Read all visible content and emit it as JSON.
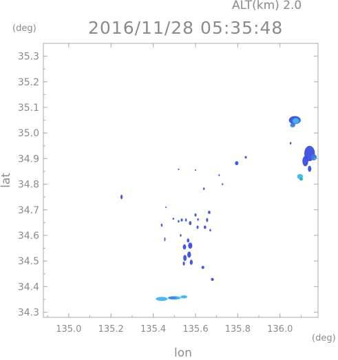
{
  "header": {
    "alt_label": "ALT(km) 2.0",
    "timestamp": "2016/11/28 05:35:48"
  },
  "colors": {
    "axis": "#aaaaaa",
    "text": "#8a8a8a",
    "echo_blue": "#3b4fe0",
    "echo_mid": "#3d7be0",
    "echo_cyan": "#3fb6ee",
    "echo_teal": "#2fa7c8"
  },
  "chart_data": {
    "type": "scatter",
    "title": "2016/11/28 05:35:48",
    "subtitle": "ALT(km) 2.0",
    "xlabel": "lon",
    "ylabel": "lat",
    "x_unit": "(deg)",
    "y_unit": "(deg)",
    "xlim": [
      134.88,
      136.18
    ],
    "ylim": [
      34.28,
      35.35
    ],
    "x_ticks": [
      135.0,
      135.2,
      135.4,
      135.6,
      135.8,
      136.0
    ],
    "x_tick_labels": [
      "135.0",
      "135.2",
      "135.4",
      "135.6",
      "135.8",
      "136.0"
    ],
    "y_ticks": [
      34.3,
      34.4,
      34.5,
      34.6,
      34.7,
      34.8,
      34.9,
      35.0,
      35.1,
      35.2,
      35.3
    ],
    "y_tick_labels": [
      "34.3",
      "34.4",
      "34.5",
      "34.6",
      "34.7",
      "34.8",
      "34.9",
      "35.0",
      "35.1",
      "35.2",
      "35.3"
    ],
    "grid": false,
    "echoes": [
      {
        "lon": 136.07,
        "lat": 35.05,
        "rx": 0.028,
        "ry": 0.016,
        "color": "#3b4fe0"
      },
      {
        "lon": 136.075,
        "lat": 35.047,
        "rx": 0.016,
        "ry": 0.011,
        "color": "#3fb6ee"
      },
      {
        "lon": 136.06,
        "lat": 35.03,
        "rx": 0.012,
        "ry": 0.008,
        "color": "#3d7be0"
      },
      {
        "lon": 136.14,
        "lat": 34.92,
        "rx": 0.025,
        "ry": 0.03,
        "color": "#3b4fe0"
      },
      {
        "lon": 136.16,
        "lat": 34.905,
        "rx": 0.014,
        "ry": 0.012,
        "color": "#3d7be0"
      },
      {
        "lon": 136.12,
        "lat": 34.89,
        "rx": 0.014,
        "ry": 0.02,
        "color": "#3b4fe0"
      },
      {
        "lon": 136.14,
        "lat": 34.86,
        "rx": 0.008,
        "ry": 0.012,
        "color": "#3b4fe0"
      },
      {
        "lon": 136.095,
        "lat": 34.83,
        "rx": 0.014,
        "ry": 0.01,
        "color": "#3fb6ee"
      },
      {
        "lon": 136.1,
        "lat": 34.82,
        "rx": 0.008,
        "ry": 0.006,
        "color": "#2fa7c8"
      },
      {
        "lon": 136.05,
        "lat": 34.96,
        "rx": 0.004,
        "ry": 0.005,
        "color": "#3b4fe0"
      },
      {
        "lon": 135.795,
        "lat": 34.882,
        "rx": 0.008,
        "ry": 0.008,
        "color": "#3b4fe0"
      },
      {
        "lon": 135.838,
        "lat": 34.905,
        "rx": 0.005,
        "ry": 0.005,
        "color": "#3b4fe0"
      },
      {
        "lon": 135.712,
        "lat": 34.835,
        "rx": 0.003,
        "ry": 0.004,
        "color": "#3b4fe0"
      },
      {
        "lon": 135.728,
        "lat": 34.8,
        "rx": 0.003,
        "ry": 0.004,
        "color": "#3b4fe0"
      },
      {
        "lon": 135.64,
        "lat": 34.782,
        "rx": 0.004,
        "ry": 0.005,
        "color": "#3b4fe0"
      },
      {
        "lon": 135.6,
        "lat": 34.855,
        "rx": 0.003,
        "ry": 0.003,
        "color": "#3b4fe0"
      },
      {
        "lon": 135.52,
        "lat": 34.858,
        "rx": 0.002,
        "ry": 0.003,
        "color": "#3b4fe0"
      },
      {
        "lon": 135.25,
        "lat": 34.75,
        "rx": 0.005,
        "ry": 0.009,
        "color": "#3b4fe0"
      },
      {
        "lon": 135.46,
        "lat": 34.71,
        "rx": 0.003,
        "ry": 0.003,
        "color": "#3b4fe0"
      },
      {
        "lon": 135.6,
        "lat": 34.68,
        "rx": 0.005,
        "ry": 0.006,
        "color": "#3b4fe0"
      },
      {
        "lon": 135.612,
        "lat": 34.662,
        "rx": 0.004,
        "ry": 0.005,
        "color": "#3b4fe0"
      },
      {
        "lon": 135.665,
        "lat": 34.69,
        "rx": 0.006,
        "ry": 0.006,
        "color": "#3b4fe0"
      },
      {
        "lon": 135.655,
        "lat": 34.66,
        "rx": 0.005,
        "ry": 0.008,
        "color": "#3b4fe0"
      },
      {
        "lon": 135.645,
        "lat": 34.632,
        "rx": 0.006,
        "ry": 0.007,
        "color": "#3b4fe0"
      },
      {
        "lon": 135.67,
        "lat": 34.62,
        "rx": 0.004,
        "ry": 0.005,
        "color": "#3b4fe0"
      },
      {
        "lon": 135.61,
        "lat": 34.632,
        "rx": 0.005,
        "ry": 0.007,
        "color": "#3b4fe0"
      },
      {
        "lon": 135.575,
        "lat": 34.648,
        "rx": 0.006,
        "ry": 0.008,
        "color": "#3b4fe0"
      },
      {
        "lon": 135.555,
        "lat": 34.66,
        "rx": 0.004,
        "ry": 0.006,
        "color": "#3b4fe0"
      },
      {
        "lon": 135.52,
        "lat": 34.655,
        "rx": 0.004,
        "ry": 0.005,
        "color": "#3b4fe0"
      },
      {
        "lon": 135.495,
        "lat": 34.665,
        "rx": 0.004,
        "ry": 0.004,
        "color": "#3b4fe0"
      },
      {
        "lon": 135.535,
        "lat": 34.66,
        "rx": 0.005,
        "ry": 0.006,
        "color": "#3b4fe0"
      },
      {
        "lon": 135.44,
        "lat": 34.64,
        "rx": 0.004,
        "ry": 0.006,
        "color": "#3b4fe0"
      },
      {
        "lon": 135.455,
        "lat": 34.585,
        "rx": 0.003,
        "ry": 0.008,
        "color": "#3b4fe0"
      },
      {
        "lon": 135.565,
        "lat": 34.58,
        "rx": 0.006,
        "ry": 0.008,
        "color": "#3b4fe0"
      },
      {
        "lon": 135.53,
        "lat": 34.6,
        "rx": 0.004,
        "ry": 0.005,
        "color": "#3b4fe0"
      },
      {
        "lon": 135.575,
        "lat": 34.56,
        "rx": 0.01,
        "ry": 0.012,
        "color": "#3b4fe0"
      },
      {
        "lon": 135.548,
        "lat": 34.555,
        "rx": 0.008,
        "ry": 0.01,
        "color": "#3b4fe0"
      },
      {
        "lon": 135.57,
        "lat": 34.525,
        "rx": 0.009,
        "ry": 0.012,
        "color": "#3b4fe0"
      },
      {
        "lon": 135.55,
        "lat": 34.512,
        "rx": 0.008,
        "ry": 0.012,
        "color": "#3b4fe0"
      },
      {
        "lon": 135.58,
        "lat": 34.495,
        "rx": 0.007,
        "ry": 0.01,
        "color": "#3b4fe0"
      },
      {
        "lon": 135.545,
        "lat": 34.49,
        "rx": 0.005,
        "ry": 0.008,
        "color": "#3b4fe0"
      },
      {
        "lon": 135.635,
        "lat": 34.475,
        "rx": 0.007,
        "ry": 0.006,
        "color": "#3b4fe0"
      },
      {
        "lon": 135.68,
        "lat": 34.428,
        "rx": 0.007,
        "ry": 0.006,
        "color": "#3b4fe0"
      },
      {
        "lon": 135.44,
        "lat": 34.352,
        "rx": 0.028,
        "ry": 0.008,
        "color": "#3fb6ee"
      },
      {
        "lon": 135.5,
        "lat": 34.356,
        "rx": 0.03,
        "ry": 0.007,
        "color": "#3fb6ee"
      },
      {
        "lon": 135.545,
        "lat": 34.36,
        "rx": 0.016,
        "ry": 0.006,
        "color": "#3fb6ee"
      },
      {
        "lon": 135.49,
        "lat": 34.356,
        "rx": 0.02,
        "ry": 0.004,
        "color": "#3d7be0"
      }
    ]
  }
}
